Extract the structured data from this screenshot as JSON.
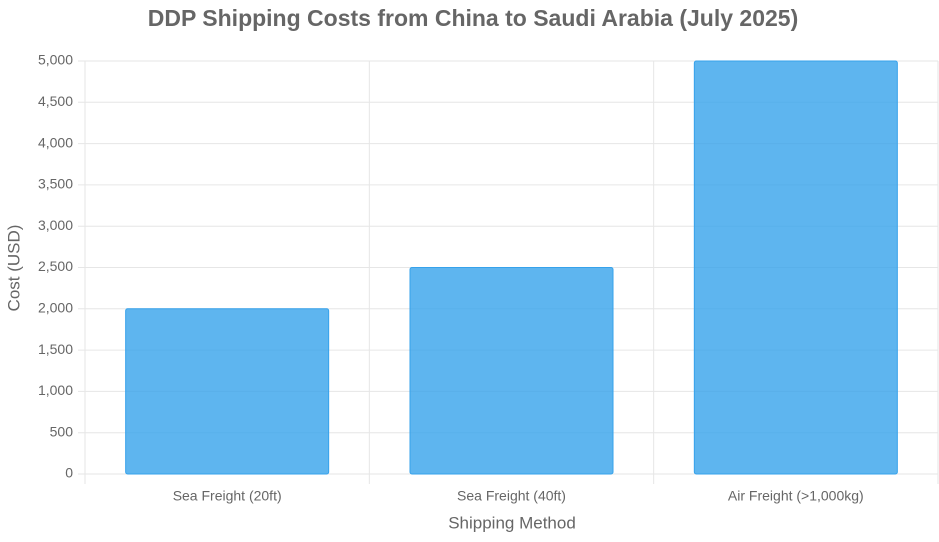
{
  "chart_data": {
    "type": "bar",
    "title": "DDP Shipping Costs from China to Saudi Arabia (July 2025)",
    "x_label": "Shipping Method",
    "y_label": "Cost (USD)",
    "categories": [
      "Sea Freight (20ft)",
      "Sea Freight (40ft)",
      "Air Freight (>1,000kg)"
    ],
    "values": [
      2000,
      2500,
      5000
    ],
    "color": "#36a2eb",
    "ylim": [
      0,
      5000
    ],
    "yticks": [
      0,
      500,
      {
        "value": 1000,
        "label": "1,000"
      },
      {
        "value": 1500,
        "label": "1,500"
      },
      {
        "value": 2000,
        "label": "2,000"
      },
      {
        "value": 2500,
        "label": "2,500"
      },
      {
        "value": 3000,
        "label": "3,000"
      },
      {
        "value": 3500,
        "label": "3,500"
      },
      {
        "value": 4000,
        "label": "4,000"
      },
      {
        "value": 4500,
        "label": "4,500"
      },
      {
        "value": 5000,
        "label": "5,000"
      }
    ],
    "grid": true
  }
}
